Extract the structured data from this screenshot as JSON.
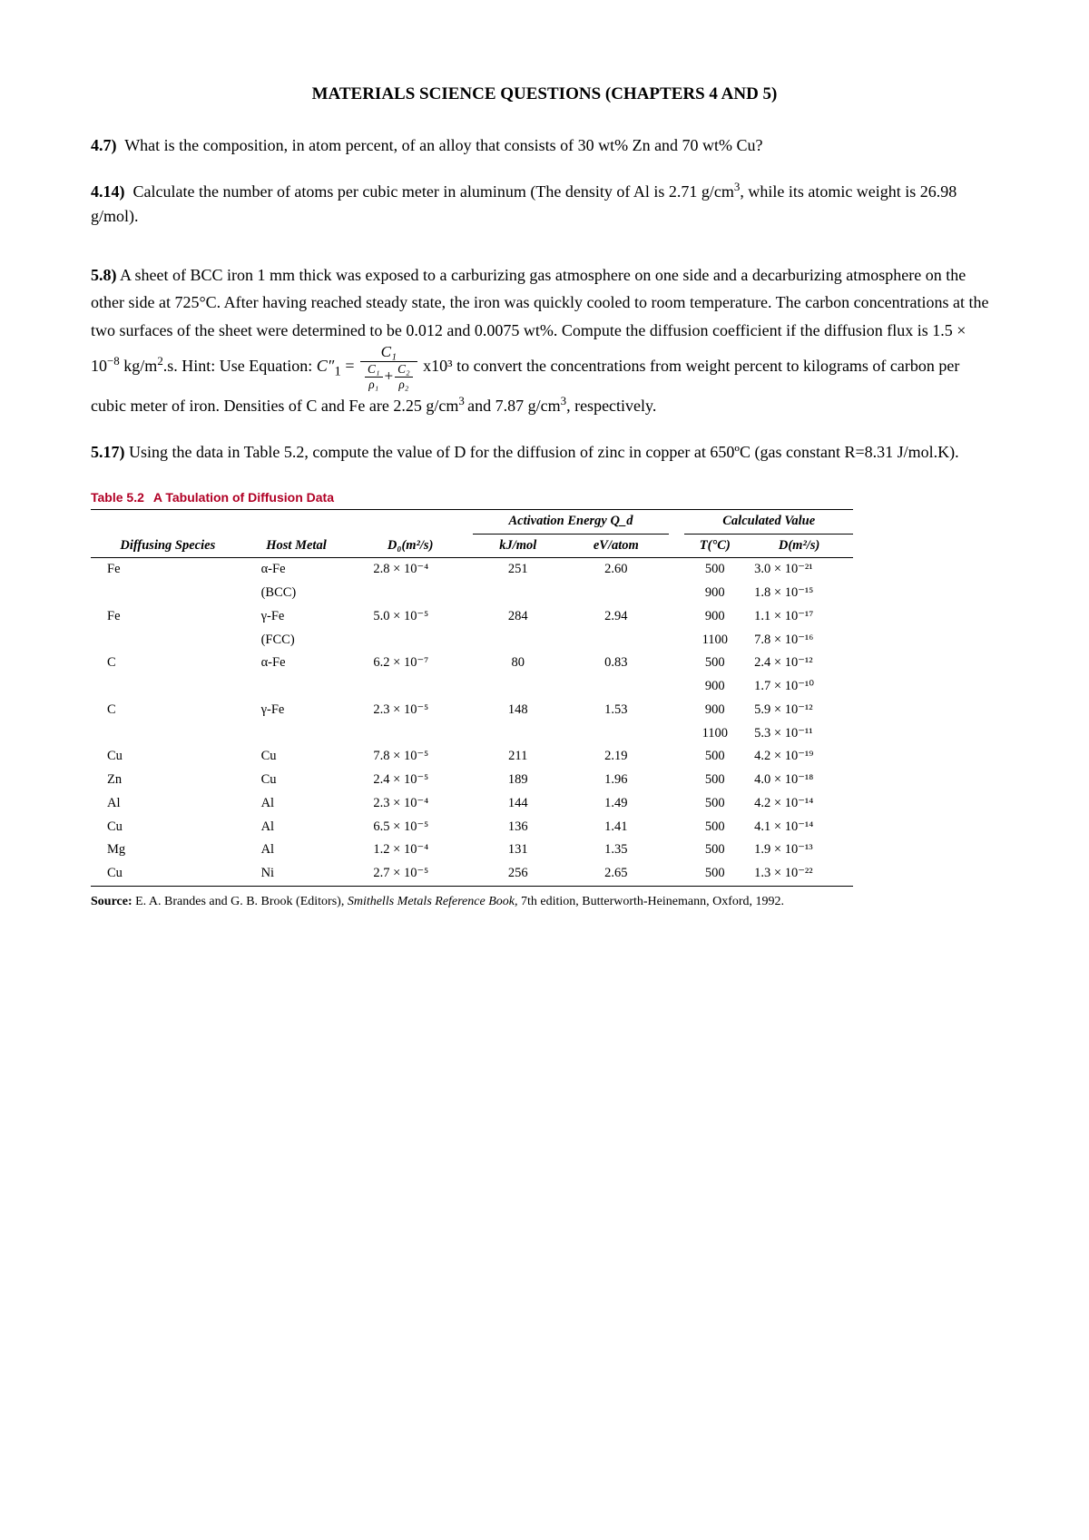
{
  "title": "MATERIALS SCIENCE QUESTIONS (CHAPTERS 4 AND 5)",
  "q47": {
    "num": "4.7)",
    "text": "What is the composition, in atom percent, of an alloy that consists of 30 wt% Zn and 70 wt% Cu?"
  },
  "q414": {
    "num": "4.14)",
    "text_a": "Calculate the number of atoms per cubic meter in aluminum (The density of Al is 2.71 g/cm",
    "text_b": ", while its atomic weight is 26.98 g/mol)."
  },
  "q58": {
    "num": "5.8)",
    "text_a": "A sheet of BCC iron 1 mm thick was exposed to a carburizing gas atmosphere on one side and a decarburizing atmosphere on the other side at 725°C. After having reached steady state, the iron was quickly cooled to room temperature. The carbon concentrations at the two surfaces of the sheet were determined to be 0.012 and 0.0075 wt%. Compute the diffusion coefficient if the diffusion flux is 1.5 × 10",
    "text_b": " kg/m",
    "text_c": ".s. Hint: Use Equation:",
    "eq_lhs": "C″",
    "eq_sub": "1",
    "eq_eq": " = ",
    "eq_num": "C₁",
    "eq_d1n": "C₁",
    "eq_d1d": "ρ₁",
    "eq_plus": "+",
    "eq_d2n": "C₂",
    "eq_d2d": "ρ₂",
    "eq_tail": " x10³ ",
    "text_d": " to convert the concentrations from weight percent to kilograms of carbon per cubic meter of iron. Densities of C and Fe are 2.25 g/cm",
    "text_e": " and 7.87 g/cm",
    "text_f": ", respectively."
  },
  "q517": {
    "num": "5.17)",
    "text": "Using the data in Table 5.2, compute the value of D for the diffusion of zinc in copper at 650ºC (gas constant R=8.31 J/mol.K)."
  },
  "table": {
    "caption_num": "Table 5.2",
    "caption_title": "A Tabulation of Diffusion Data",
    "h_species": "Diffusing Species",
    "h_host": "Host Metal",
    "h_d0": "D₀(m²/s)",
    "h_ae": "Activation Energy Q_d",
    "h_kj": "kJ/mol",
    "h_ev": "eV/atom",
    "h_cv": "Calculated Value",
    "h_tc": "T(°C)",
    "h_d": "D(m²/s)",
    "rows": [
      {
        "sp": "Fe",
        "host": "α-Fe",
        "hostsub": "(BCC)",
        "d0": "2.8 × 10⁻⁴",
        "kj": "251",
        "ev": "2.60",
        "tc": [
          "500",
          "900"
        ],
        "d": [
          "3.0 × 10⁻²¹",
          "1.8 × 10⁻¹⁵"
        ]
      },
      {
        "sp": "Fe",
        "host": "γ-Fe",
        "hostsub": "(FCC)",
        "d0": "5.0 × 10⁻⁵",
        "kj": "284",
        "ev": "2.94",
        "tc": [
          "900",
          "1100"
        ],
        "d": [
          "1.1 × 10⁻¹⁷",
          "7.8 × 10⁻¹⁶"
        ]
      },
      {
        "sp": "C",
        "host": "α-Fe",
        "d0": "6.2 × 10⁻⁷",
        "kj": "80",
        "ev": "0.83",
        "tc": [
          "500",
          "900"
        ],
        "d": [
          "2.4 × 10⁻¹²",
          "1.7 × 10⁻¹⁰"
        ]
      },
      {
        "sp": "C",
        "host": "γ-Fe",
        "d0": "2.3 × 10⁻⁵",
        "kj": "148",
        "ev": "1.53",
        "tc": [
          "900",
          "1100"
        ],
        "d": [
          "5.9 × 10⁻¹²",
          "5.3 × 10⁻¹¹"
        ]
      },
      {
        "sp": "Cu",
        "host": "Cu",
        "d0": "7.8 × 10⁻⁵",
        "kj": "211",
        "ev": "2.19",
        "tc": [
          "500"
        ],
        "d": [
          "4.2 × 10⁻¹⁹"
        ]
      },
      {
        "sp": "Zn",
        "host": "Cu",
        "d0": "2.4 × 10⁻⁵",
        "kj": "189",
        "ev": "1.96",
        "tc": [
          "500"
        ],
        "d": [
          "4.0 × 10⁻¹⁸"
        ]
      },
      {
        "sp": "Al",
        "host": "Al",
        "d0": "2.3 × 10⁻⁴",
        "kj": "144",
        "ev": "1.49",
        "tc": [
          "500"
        ],
        "d": [
          "4.2 × 10⁻¹⁴"
        ]
      },
      {
        "sp": "Cu",
        "host": "Al",
        "d0": "6.5 × 10⁻⁵",
        "kj": "136",
        "ev": "1.41",
        "tc": [
          "500"
        ],
        "d": [
          "4.1 × 10⁻¹⁴"
        ]
      },
      {
        "sp": "Mg",
        "host": "Al",
        "d0": "1.2 × 10⁻⁴",
        "kj": "131",
        "ev": "1.35",
        "tc": [
          "500"
        ],
        "d": [
          "1.9 × 10⁻¹³"
        ]
      },
      {
        "sp": "Cu",
        "host": "Ni",
        "d0": "2.7 × 10⁻⁵",
        "kj": "256",
        "ev": "2.65",
        "tc": [
          "500"
        ],
        "d": [
          "1.3 × 10⁻²²"
        ]
      }
    ],
    "source_label": "Source:",
    "source_text_a": " E. A. Brandes and G. B. Brook (Editors), ",
    "source_ital": "Smithells Metals Reference Book,",
    "source_text_b": " 7th edition, Butterworth-Heinemann, Oxford, 1992."
  }
}
